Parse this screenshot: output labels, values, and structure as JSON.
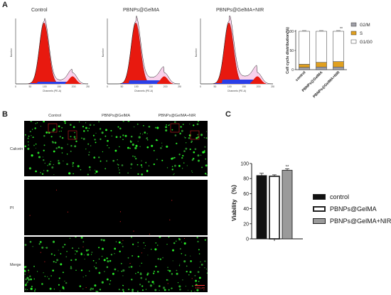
{
  "panels": {
    "a": "A",
    "b": "B",
    "c": "C"
  },
  "flow": {
    "titles": [
      "Control",
      "PBNPs@GelMA",
      "PBNPs@GelMA+NIR"
    ],
    "ylabel": "Number",
    "xlabel": "Channels (PE-A)",
    "ticks": [
      "0",
      "50",
      "100",
      "150",
      "200",
      "250"
    ]
  },
  "fluor": {
    "cols": [
      "Control",
      "PBNPs@GelMA",
      "PBNPs@GelMA+NIR"
    ],
    "rows": [
      "Calcein",
      "PI",
      "Merge"
    ],
    "scale": "100 μm"
  },
  "chart_data": [
    {
      "type": "bar",
      "stacked": true,
      "categories": [
        "control",
        "PBNPs@GelMA",
        "PBNPs@GelMA+NIR"
      ],
      "ylabel": "Cell cycle distribution(%)",
      "ylim": [
        0,
        100
      ],
      "yticks": [
        "0",
        "50",
        "100"
      ],
      "series": [
        {
          "name": "G1/G0",
          "values": [
            86,
            81,
            79
          ],
          "color": "#ffffff"
        },
        {
          "name": "S",
          "values": [
            8,
            12,
            14
          ],
          "color": "#e0a020"
        },
        {
          "name": "G2/M",
          "values": [
            6,
            7,
            7
          ],
          "color": "#a0a0a8"
        }
      ],
      "annotations": [
        {
          "category": "PBNPs@GelMA+NIR",
          "text": "**"
        }
      ],
      "legend": "right"
    },
    {
      "type": "bar",
      "categories": [
        "control",
        "PBNPs@GelMA",
        "PBNPs@GelMA+NIR"
      ],
      "values": [
        84,
        83,
        91
      ],
      "errors": [
        3,
        2,
        2
      ],
      "ylabel": "Viability （%）",
      "ylim": [
        0,
        100
      ],
      "yticks": [
        "0",
        "20",
        "40",
        "60",
        "80",
        "100"
      ],
      "legend": "right",
      "annotations": [
        {
          "category": "PBNPs@GelMA+NIR",
          "text": "**"
        }
      ],
      "colors": [
        "#111111",
        "#ffffff",
        "#9a9a9a"
      ]
    }
  ]
}
